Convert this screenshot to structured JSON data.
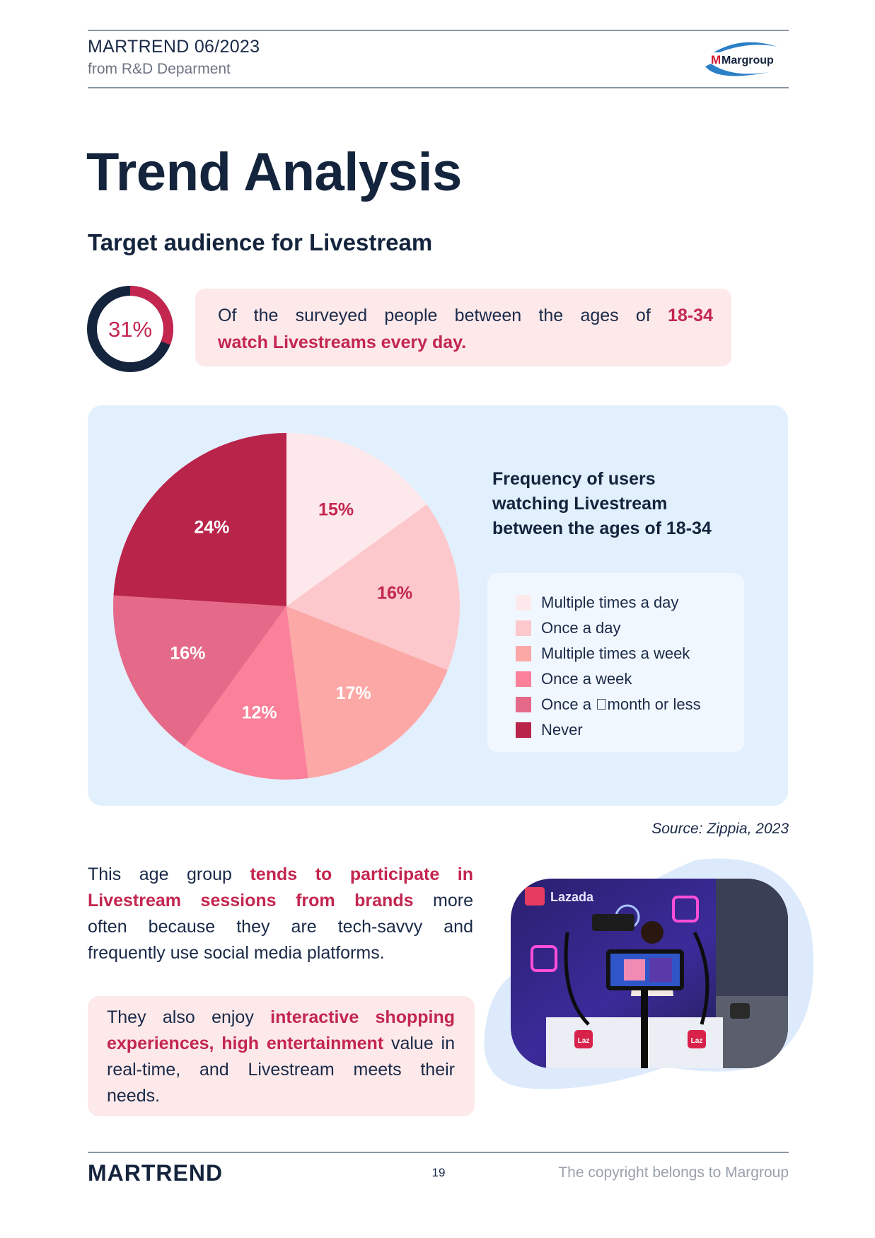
{
  "header": {
    "issue": "MARTREND 06/2023",
    "department": "from R&D Deparment",
    "logo_text": "Margroup"
  },
  "page_title": "Trend Analysis",
  "subtitle": "Target audience for Livestream",
  "highlight_stat": {
    "value": "31%",
    "fraction": 0.31,
    "text_line1_plain": "Of the surveyed people between the ages of",
    "text_line1_bold": "18-34",
    "text_line2_bold": "watch Livestreams every day."
  },
  "chart_data": {
    "type": "pie",
    "title": "Frequency of users watching Livestream between the ages of 18-34",
    "title_lines": [
      "Frequency of users",
      "watching Livestream",
      "between the ages of 18-34"
    ],
    "legend_position": "right",
    "slices": [
      {
        "name": "Multiple times a day",
        "value": 15,
        "label": "15%",
        "color": "#fde9ec"
      },
      {
        "name": "Once a day",
        "value": 16,
        "label": "16%",
        "color": "#fdc8cc"
      },
      {
        "name": "Multiple times a week",
        "value": 17,
        "label": "17%",
        "color": "#fca8a7"
      },
      {
        "name": "Once a week",
        "value": 12,
        "label": "12%",
        "color": "#fb8099"
      },
      {
        "name": "Once a \u0000month or less",
        "value": 16,
        "label": "16%",
        "color": "#e56988"
      },
      {
        "name": "Never",
        "value": 24,
        "label": "24%",
        "color": "#b9244a"
      }
    ]
  },
  "source": "\u0000Source: Zippia, 2023",
  "paragraph1": {
    "l1_a": "This age group ",
    "l1_b": "tends to participate in",
    "l2_a": "Livestream sessions from brands",
    "l2_b": " more",
    "l3": "often because they are tech-savvy and",
    "l4": "frequently use social media platforms."
  },
  "paragraph2": {
    "a": "They also enjoy ",
    "b": "interactive shopping experiences, high entertainment",
    "c": " value in real-time, and Livestream meets their needs."
  },
  "photo": {
    "sign_text": "Lazada",
    "badge_text": "Laz"
  },
  "footer": {
    "brand": "MARTREND",
    "page_number": "19",
    "copyright": "The copyright belongs to Margroup"
  },
  "colors": {
    "navy": "#14243d",
    "accent": "#c3264f",
    "pink_box": "#fde8ea",
    "panel_blue": "#e2effd"
  }
}
